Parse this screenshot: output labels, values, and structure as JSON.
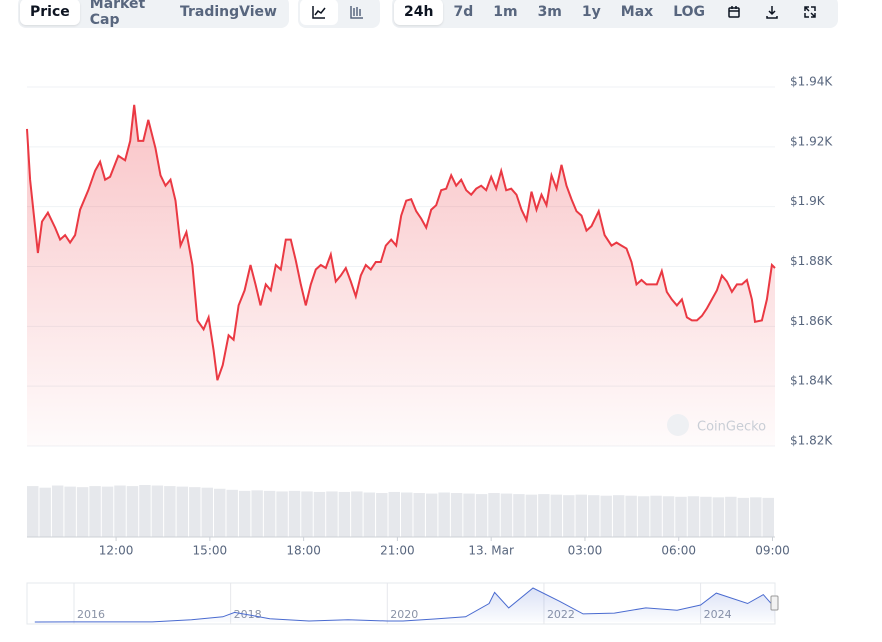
{
  "toolbar": {
    "views": [
      "Price",
      "Market Cap",
      "TradingView"
    ],
    "active_view": 0,
    "ranges": [
      "24h",
      "7d",
      "1m",
      "3m",
      "1y",
      "Max",
      "LOG"
    ],
    "active_range": 0
  },
  "chart_data": {
    "type": "line",
    "color": "#ea3943",
    "watermark": "CoinGecko",
    "x": [
      9.15,
      9.25,
      9.5,
      9.63,
      9.82,
      10.05,
      10.21,
      10.37,
      10.53,
      10.69,
      10.85,
      11.11,
      11.33,
      11.49,
      11.65,
      11.81,
      12.07,
      12.29,
      12.45,
      12.58,
      12.71,
      12.87,
      13.03,
      13.26,
      13.42,
      13.58,
      13.74,
      13.9,
      14.06,
      14.25,
      14.44,
      14.6,
      14.8,
      14.96,
      15.12,
      15.24,
      15.41,
      15.6,
      15.76,
      15.92,
      16.11,
      16.3,
      16.46,
      16.62,
      16.79,
      16.95,
      17.11,
      17.27,
      17.43,
      17.59,
      17.75,
      17.91,
      18.07,
      18.23,
      18.39,
      18.55,
      18.71,
      18.87,
      19.03,
      19.19,
      19.35,
      19.51,
      19.67,
      19.83,
      19.99,
      20.15,
      20.31,
      20.47,
      20.63,
      20.8,
      20.96,
      21.12,
      21.28,
      21.44,
      21.6,
      21.76,
      21.92,
      22.08,
      22.24,
      22.4,
      22.56,
      22.72,
      22.88,
      23.04,
      23.2,
      23.36,
      23.52,
      23.68,
      23.84,
      24,
      24.16,
      24.32,
      24.48,
      24.64,
      24.81,
      24.97,
      25.13,
      25.29,
      25.45,
      25.61,
      25.77,
      25.93,
      26.09,
      26.25,
      26.41,
      26.57,
      26.73,
      26.89,
      27.05,
      27.21,
      27.44,
      27.63,
      27.85,
      28.01,
      28.17,
      28.33,
      28.49,
      28.65,
      28.81,
      28.97,
      29.14,
      29.3,
      29.46,
      29.62,
      29.78,
      29.94,
      30.1,
      30.26,
      30.42,
      30.58,
      30.74,
      30.9,
      31.06,
      31.22,
      31.38,
      31.54,
      31.7,
      31.86,
      32.02,
      32.18,
      32.34,
      32.44,
      32.66,
      32.82,
      32.98,
      33.08
    ],
    "values": [
      1926,
      1909,
      1884.5,
      1895,
      1898,
      1893,
      1889,
      1890.5,
      1888,
      1890.5,
      1899,
      1905.5,
      1912,
      1915,
      1909,
      1910,
      1917,
      1915.5,
      1922,
      1934,
      1922,
      1922,
      1929,
      1919.5,
      1910.5,
      1907,
      1909,
      1902,
      1887,
      1891.5,
      1880.5,
      1862,
      1859,
      1863,
      1852,
      1842,
      1847,
      1857,
      1855.5,
      1867,
      1872,
      1880.5,
      1874,
      1867,
      1874,
      1872,
      1880.5,
      1879,
      1889,
      1889,
      1882,
      1874,
      1867,
      1874,
      1879,
      1880.5,
      1879.5,
      1884,
      1875,
      1877,
      1879.5,
      1875,
      1870,
      1877,
      1880.5,
      1879,
      1881.5,
      1881.5,
      1887,
      1889,
      1887,
      1897,
      1902,
      1902.5,
      1898.5,
      1896,
      1893,
      1899,
      1900.5,
      1905.5,
      1906,
      1910.5,
      1907,
      1909,
      1905.5,
      1904,
      1906,
      1907,
      1905.5,
      1910,
      1906,
      1912,
      1905.5,
      1906,
      1904,
      1899,
      1895.5,
      1905,
      1899,
      1904,
      1900.5,
      1910.5,
      1906,
      1914,
      1907,
      1902.5,
      1898.5,
      1897,
      1892,
      1893.5,
      1898.5,
      1890.5,
      1887,
      1888,
      1887,
      1886,
      1881.5,
      1874,
      1875.5,
      1874,
      1874,
      1874,
      1878.5,
      1871.5,
      1869,
      1867,
      1869,
      1863,
      1862,
      1862,
      1863.5,
      1866,
      1869,
      1872,
      1877,
      1875,
      1871.5,
      1874,
      1874,
      1875.5,
      1869,
      1861.5,
      1862,
      1869,
      1880.5,
      1879.5
    ],
    "xlim": [
      9.15,
      33.08
    ],
    "xticks": [
      {
        "value": 12,
        "label": "12:00"
      },
      {
        "value": 15,
        "label": "15:00"
      },
      {
        "value": 18,
        "label": "18:00"
      },
      {
        "value": 21,
        "label": "21:00"
      },
      {
        "value": 24,
        "label": "13. Mar"
      },
      {
        "value": 27,
        "label": "03:00"
      },
      {
        "value": 30,
        "label": "06:00"
      },
      {
        "value": 33,
        "label": "09:00"
      }
    ],
    "ylim": [
      1820,
      1940
    ],
    "yticks": [
      {
        "value": 1820,
        "label": "$1.82K"
      },
      {
        "value": 1840,
        "label": "$1.84K"
      },
      {
        "value": 1860,
        "label": "$1.86K"
      },
      {
        "value": 1880,
        "label": "$1.88K"
      },
      {
        "value": 1900,
        "label": "$1.9K"
      },
      {
        "value": 1920,
        "label": "$1.92K"
      },
      {
        "value": 1940,
        "label": "$1.94K"
      }
    ],
    "grid": true,
    "volume": {
      "color": "#e6e8ec",
      "values": [
        95,
        92,
        96,
        94,
        93,
        95,
        94,
        96,
        95,
        97,
        96,
        95,
        94,
        93,
        92,
        90,
        88,
        86,
        87,
        86,
        85,
        86,
        85,
        84,
        85,
        84,
        85,
        83,
        82,
        84,
        83,
        82,
        81,
        83,
        82,
        81,
        80,
        82,
        81,
        80,
        79,
        80,
        79,
        78,
        79,
        78,
        77,
        78,
        77,
        76,
        77,
        76,
        75,
        76,
        75,
        74,
        75,
        73,
        74,
        73
      ]
    },
    "navigator": {
      "color": "#4a6bd0",
      "xlim": [
        2015.4,
        2024.95
      ],
      "ylim": [
        0,
        5000
      ],
      "xticks": [
        2016,
        2018,
        2020,
        2022,
        2024
      ],
      "x": [
        2015.5,
        2016,
        2016.5,
        2017,
        2017.5,
        2017.9,
        2018.05,
        2018.5,
        2019,
        2019.5,
        2020,
        2020.2,
        2020.6,
        2021,
        2021.3,
        2021.37,
        2021.55,
        2021.86,
        2022.2,
        2022.5,
        2022.9,
        2023.3,
        2023.7,
        2024,
        2024.2,
        2024.6,
        2024.8,
        2024.95
      ],
      "values": [
        1,
        10,
        12,
        10,
        300,
        700,
        1300,
        450,
        130,
        300,
        140,
        130,
        400,
        700,
        2500,
        4000,
        1900,
        4600,
        2800,
        1100,
        1200,
        1900,
        1600,
        2300,
        3900,
        2500,
        3700,
        1900
      ]
    }
  }
}
